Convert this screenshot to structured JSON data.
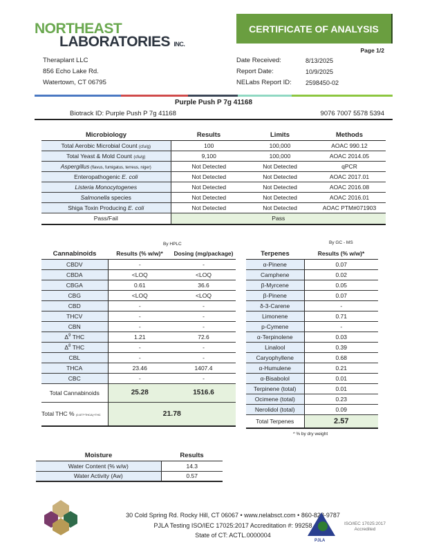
{
  "header": {
    "logo_line1": "NORTHEAST",
    "logo_line2": "LABORATORIES",
    "logo_suffix": "INC.",
    "banner": "CERTIFICATE OF ANALYSIS",
    "page": "Page 1/2",
    "client": [
      "Theraplant LLC",
      "856 Echo Lake Rd.",
      "Watertown, CT 06795"
    ],
    "meta": [
      {
        "label": "Date Received:",
        "value": "8/13/2025"
      },
      {
        "label": "Report Date:",
        "value": "10/9/2025"
      },
      {
        "label": "NELabs Report ID:",
        "value": "2598450-02"
      }
    ],
    "color_bar": [
      "#4a78c2",
      "#d04a4a",
      "#3a4556",
      "#8fd8c2",
      "#8cc63f"
    ]
  },
  "product": {
    "title": "Purple Push P 7g 41168",
    "biotrack": "Biotrack ID:  Purple Push P 7g 41168",
    "biotrack_number": "9076 7007 5578 5394"
  },
  "microbiology": {
    "headers": [
      "Microbiology",
      "Results",
      "Limits",
      "Methods"
    ],
    "rows": [
      {
        "name": [
          {
            "t": "Total Aerobic Microbial Count "
          },
          {
            "t": "(cfu/g)",
            "s": 1
          }
        ],
        "result": "100",
        "limit": "100,000",
        "method": "AOAC 990.12"
      },
      {
        "name": [
          {
            "t": "Total Yeast & Mold Count "
          },
          {
            "t": "(cfu/g)",
            "s": 1
          }
        ],
        "result": "9,100",
        "limit": "100,000",
        "method": "AOAC 2014.05"
      },
      {
        "name": [
          {
            "t": "Aspergillus",
            "i": 1
          },
          {
            "t": "  (flavus, fumigatus, terreus, niger)",
            "s": 1
          }
        ],
        "result": "Not Detected",
        "limit": "Not Detected",
        "method": "qPCR"
      },
      {
        "name": [
          {
            "t": "Enteropathogenic "
          },
          {
            "t": "E. coli",
            "i": 1
          }
        ],
        "result": "Not Detected",
        "limit": "Not Detected",
        "method": "AOAC 2017.01"
      },
      {
        "name": [
          {
            "t": "Listeria Monocytogenes",
            "i": 1
          }
        ],
        "result": "Not Detected",
        "limit": "Not Detected",
        "method": "AOAC 2016.08"
      },
      {
        "name": [
          {
            "t": "Salmonella",
            "i": 1
          },
          {
            "t": " species"
          }
        ],
        "result": "Not Detected",
        "limit": "Not Detected",
        "method": "AOAC 2016.01"
      },
      {
        "name": [
          {
            "t": "Shiga Toxin Producing "
          },
          {
            "t": "E. coli",
            "i": 1
          }
        ],
        "result": "Not Detected",
        "limit": "Not Detected",
        "method": "AOAC PTM#071903"
      }
    ],
    "pass_label": "Pass/Fail",
    "pass_value": "Pass"
  },
  "cannabinoids": {
    "method": "By HPLC",
    "headers": [
      "Cannabinoids",
      "Results (% w/w)*",
      "Dosing (mg/package)"
    ],
    "rows": [
      {
        "name": [
          {
            "t": "CBDV"
          }
        ],
        "result": "-",
        "dosing": "-"
      },
      {
        "name": [
          {
            "t": "CBDA"
          }
        ],
        "result": "<LOQ",
        "dosing": "<LOQ"
      },
      {
        "name": [
          {
            "t": "CBGA"
          }
        ],
        "result": "0.61",
        "dosing": "36.6"
      },
      {
        "name": [
          {
            "t": "CBG"
          }
        ],
        "result": "<LOQ",
        "dosing": "<LOQ"
      },
      {
        "name": [
          {
            "t": "CBD"
          }
        ],
        "result": "-",
        "dosing": "-"
      },
      {
        "name": [
          {
            "t": "THCV"
          }
        ],
        "result": "-",
        "dosing": "-"
      },
      {
        "name": [
          {
            "t": "CBN"
          }
        ],
        "result": "-",
        "dosing": "-"
      },
      {
        "name": [
          {
            "t": "Δ"
          },
          {
            "t": "9",
            "sup": 1
          },
          {
            "t": " THC"
          }
        ],
        "result": "1.21",
        "dosing": "72.6"
      },
      {
        "name": [
          {
            "t": "Δ"
          },
          {
            "t": "8",
            "sup": 1
          },
          {
            "t": " THC"
          }
        ],
        "result": "-",
        "dosing": "-"
      },
      {
        "name": [
          {
            "t": "CBL"
          }
        ],
        "result": "-",
        "dosing": "-"
      },
      {
        "name": [
          {
            "t": "THCA"
          }
        ],
        "result": "23.46",
        "dosing": "1407.4"
      },
      {
        "name": [
          {
            "t": "CBC"
          }
        ],
        "result": "-",
        "dosing": "-"
      }
    ],
    "total_label": "Total Cannabinoids",
    "total_result": "25.28",
    "total_dosing": "1516.6",
    "thc_label": "Total THC %",
    "thc_formula": "(0.877*THCA)+THC",
    "thc_value": "21.78"
  },
  "terpenes": {
    "method": "By GC - MS",
    "headers": [
      "Terpenes",
      "Results (% w/w)*"
    ],
    "rows": [
      [
        "α-Pinene",
        "0.07"
      ],
      [
        "Camphene",
        "0.02"
      ],
      [
        "β-Myrcene",
        "0.05"
      ],
      [
        "β-Pinene",
        "0.07"
      ],
      [
        "δ-3-Carene",
        "-"
      ],
      [
        "Limonene",
        "0.71"
      ],
      [
        "p-Cymene",
        "-"
      ],
      [
        "α-Terpinolene",
        "0.03"
      ],
      [
        "Linalool",
        "0.39"
      ],
      [
        "Caryophyllene",
        "0.68"
      ],
      [
        "α-Humulene",
        "0.21"
      ],
      [
        "α-Bisabolol",
        "0.01"
      ],
      [
        "Terpinene (total)",
        "0.01"
      ],
      [
        "Ocimene (total)",
        "0.23"
      ],
      [
        "Nerolidol (total)",
        "0.09"
      ]
    ],
    "total_label": "Total Terpenes",
    "total_value": "2.57",
    "footnote": "* % by dry weight"
  },
  "moisture": {
    "headers": [
      "Moisture",
      "Results"
    ],
    "rows": [
      [
        "Water Content (% w/w)",
        "14.3"
      ],
      [
        "Water Activity (Aw)",
        "0.57"
      ]
    ]
  },
  "footer": {
    "line1": "30 Cold Spring Rd. Rocky Hill, CT 06067  •  www.nelabsct.com  •  860-828-9787",
    "line2": "PJLA Testing ISO/IEC 17025:2017 Accreditation #: 99258",
    "line3": "State of CT: ACTL.0000004",
    "pjla_logo": "PJLA",
    "pjla_text": "ISO/IEC 17025:2017 Accredited"
  }
}
